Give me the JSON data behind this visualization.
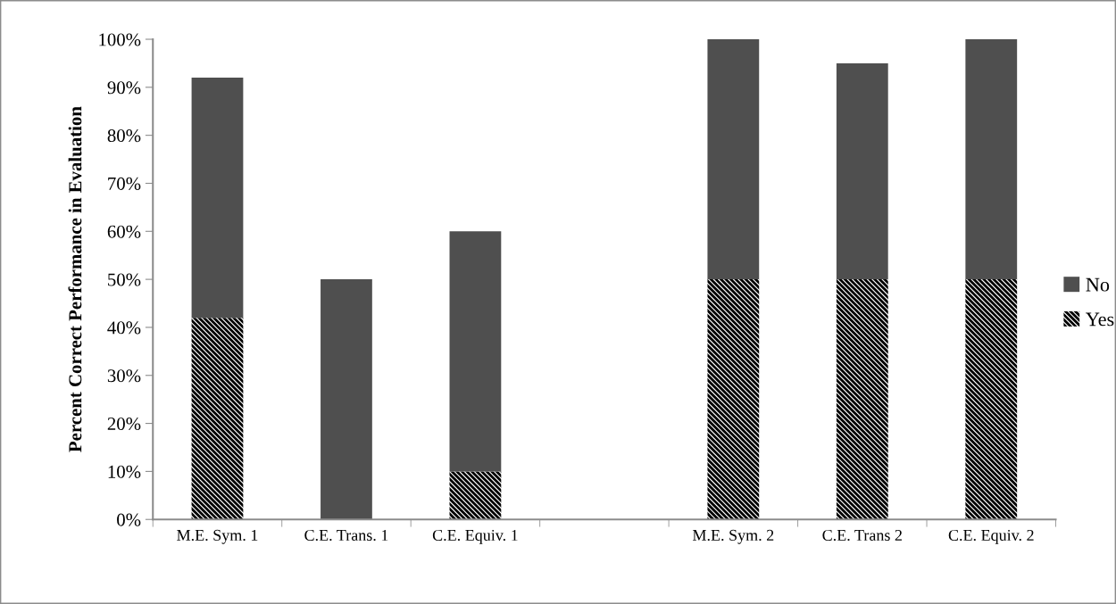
{
  "chart_data": {
    "type": "bar",
    "stacked": true,
    "ylabel": "Percent Correct Performance in Evaluation",
    "categories": [
      "M.E. Sym. 1",
      "C.E. Trans. 1",
      "C.E. Equiv. 1",
      null,
      "M.E. Sym. 2",
      "C.E. Trans 2",
      "C.E. Equiv. 2"
    ],
    "series": [
      {
        "name": "Yes",
        "color": "#000000",
        "values": [
          42,
          0,
          10,
          null,
          50,
          50,
          50
        ]
      },
      {
        "name": "No",
        "color": "#4f4f4f",
        "values": [
          50,
          50,
          50,
          null,
          50,
          45,
          50
        ]
      }
    ],
    "ylim": [
      0,
      100
    ],
    "yticks": [
      {
        "value": 0,
        "label": "0%"
      },
      {
        "value": 10,
        "label": "10%"
      },
      {
        "value": 20,
        "label": "20%"
      },
      {
        "value": 30,
        "label": "30%"
      },
      {
        "value": 40,
        "label": "40%"
      },
      {
        "value": 50,
        "label": "50%"
      },
      {
        "value": 60,
        "label": "60%"
      },
      {
        "value": 70,
        "label": "70%"
      },
      {
        "value": 80,
        "label": "80%"
      },
      {
        "value": 90,
        "label": "90%"
      },
      {
        "value": 100,
        "label": "100%"
      }
    ],
    "grid": false,
    "legend": "right"
  }
}
